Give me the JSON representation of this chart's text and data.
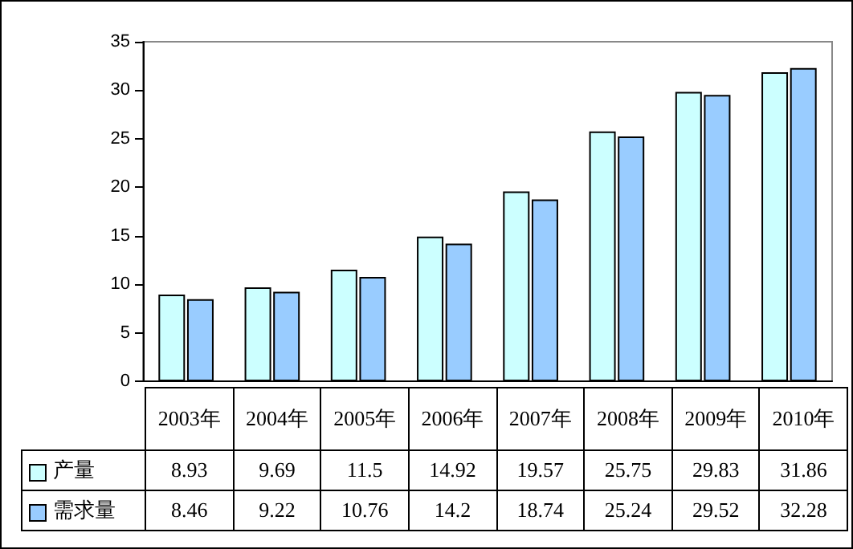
{
  "chart_data": {
    "type": "bar",
    "categories": [
      "2003年",
      "2004年",
      "2005年",
      "2006年",
      "2007年",
      "2008年",
      "2009年",
      "2010年"
    ],
    "series": [
      {
        "name": "产量",
        "color": "#ccffff",
        "values": [
          8.93,
          9.69,
          11.5,
          14.92,
          19.57,
          25.75,
          29.83,
          31.86
        ]
      },
      {
        "name": "需求量",
        "color": "#99ccff",
        "values": [
          8.46,
          9.22,
          10.76,
          14.2,
          18.74,
          25.24,
          29.52,
          32.28
        ]
      }
    ],
    "ylim": [
      0,
      35
    ],
    "yticks": [
      0,
      5,
      10,
      15,
      20,
      25,
      30,
      35
    ],
    "grid": false,
    "legend": "bottom",
    "data_labels": true
  }
}
